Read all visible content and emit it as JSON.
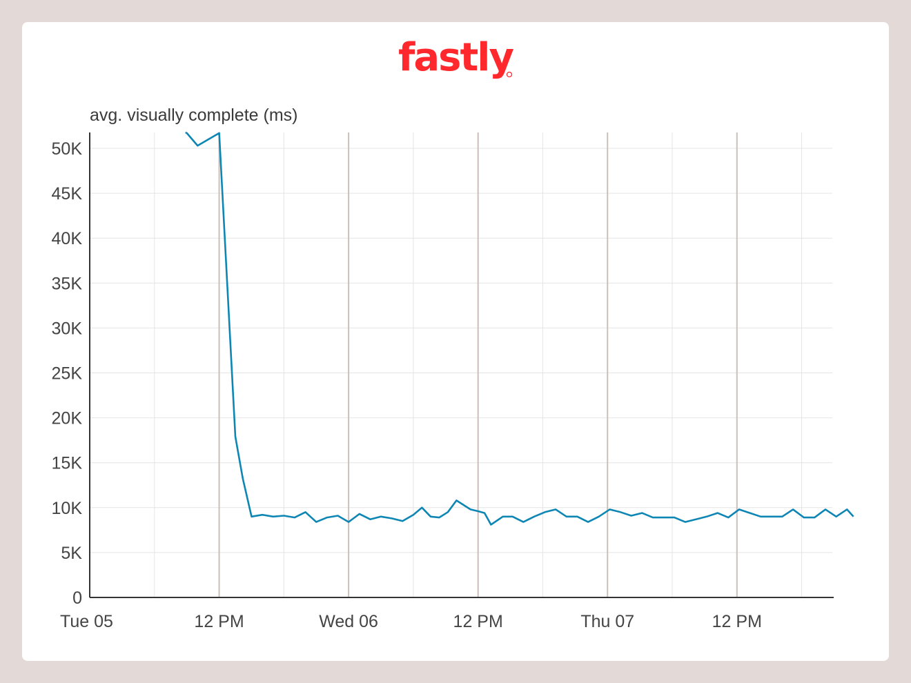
{
  "brand": {
    "name": "fastly",
    "color": "#ff282d"
  },
  "colors": {
    "background": "#e3d9d6",
    "card": "#ffffff",
    "line": "#0e86b4",
    "grid": "#e4e4e4",
    "day_grid": "#cbbfbb",
    "axis": "#333333"
  },
  "chart_data": {
    "type": "line",
    "title": "",
    "ylabel": "avg. visually complete (ms)",
    "xlabel": "",
    "ylim": [
      0,
      50000
    ],
    "y_ticks": [
      {
        "value": 0,
        "label": "0"
      },
      {
        "value": 5000,
        "label": "5K"
      },
      {
        "value": 10000,
        "label": "10K"
      },
      {
        "value": 15000,
        "label": "15K"
      },
      {
        "value": 20000,
        "label": "20K"
      },
      {
        "value": 25000,
        "label": "25K"
      },
      {
        "value": 30000,
        "label": "30K"
      },
      {
        "value": 35000,
        "label": "35K"
      },
      {
        "value": 40000,
        "label": "40K"
      },
      {
        "value": 45000,
        "label": "45K"
      },
      {
        "value": 50000,
        "label": "50K"
      }
    ],
    "x_unit": "hours from Tue 05 00:00",
    "xlim": [
      0,
      71.5
    ],
    "x_ticks": [
      {
        "value": 0,
        "label": "Tue 05"
      },
      {
        "value": 12,
        "label": "12 PM"
      },
      {
        "value": 24,
        "label": "Wed 06"
      },
      {
        "value": 36,
        "label": "12 PM"
      },
      {
        "value": 48,
        "label": "Thu 07"
      },
      {
        "value": 60,
        "label": "12 PM"
      }
    ],
    "grid": true,
    "grid_hours": [
      6,
      12,
      18,
      24,
      30,
      36,
      42,
      48,
      54,
      60,
      66
    ],
    "day_grid_hours": [
      12,
      24,
      36,
      48,
      60
    ],
    "series": [
      {
        "name": "",
        "x": [
          9.0,
          10.0,
          12.0,
          13.5,
          14.2,
          15.0,
          16.0,
          17.0,
          18.0,
          19.0,
          20.0,
          21.0,
          22.0,
          23.0,
          24.0,
          25.0,
          26.0,
          27.0,
          28.0,
          29.0,
          30.0,
          30.8,
          31.6,
          32.4,
          33.2,
          34.0,
          35.3,
          36.0,
          36.6,
          37.2,
          38.3,
          39.2,
          40.2,
          41.2,
          42.2,
          43.2,
          44.2,
          45.2,
          46.2,
          47.2,
          48.2,
          49.2,
          50.2,
          51.2,
          52.2,
          53.2,
          54.2,
          55.2,
          56.2,
          57.2,
          58.2,
          59.2,
          60.2,
          61.2,
          62.2,
          63.2,
          64.2,
          65.2,
          66.2,
          67.2,
          68.2,
          69.2,
          70.2,
          70.8
        ],
        "y": [
          51700,
          50300,
          51700,
          17900,
          13200,
          9000,
          9200,
          9000,
          9100,
          8900,
          9500,
          8400,
          8900,
          9100,
          8400,
          9300,
          8700,
          9000,
          8800,
          8500,
          9200,
          10000,
          9000,
          8900,
          9500,
          10800,
          9800,
          9600,
          9400,
          8100,
          9000,
          9000,
          8400,
          9000,
          9500,
          9800,
          9000,
          9000,
          8400,
          9000,
          9800,
          9500,
          9100,
          9400,
          8900,
          8900,
          8900,
          8400,
          8700,
          9000,
          9400,
          8900,
          9800,
          9400,
          9000,
          9000,
          9000,
          9800,
          8900,
          8900,
          9800,
          9000,
          9800,
          9000
        ]
      }
    ]
  }
}
